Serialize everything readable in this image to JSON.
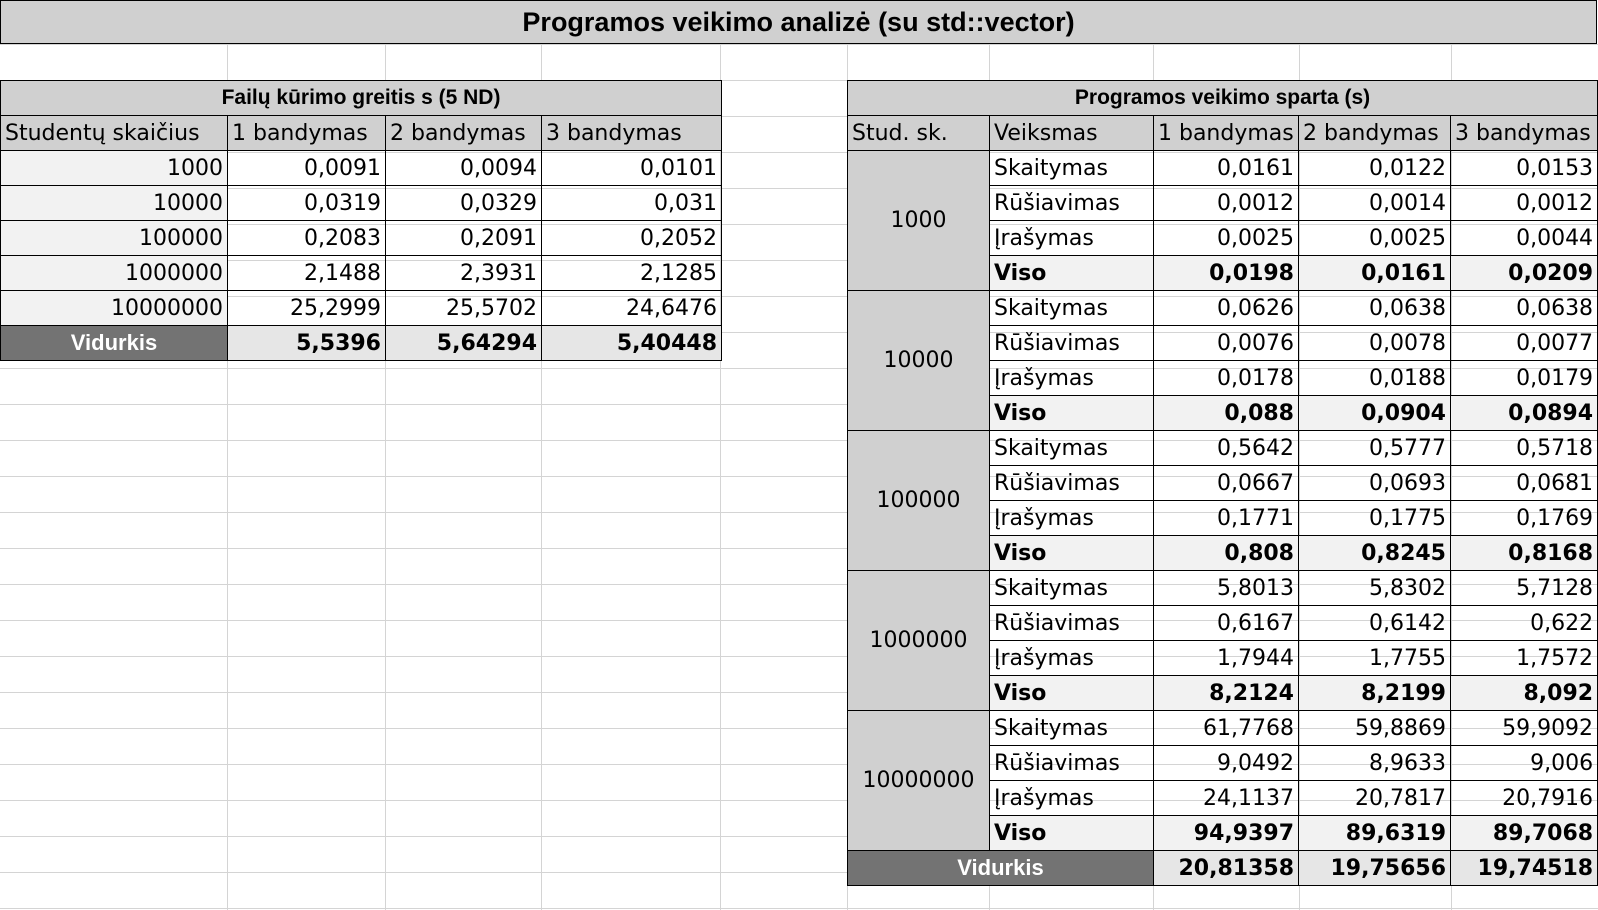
{
  "title": "Programos veikimo analizė (su std::vector)",
  "left_table": {
    "header": "Failų kūrimo greitis s (5 ND)",
    "columns": [
      "Studentų skaičius",
      "1 bandymas",
      "2 bandymas",
      "3 bandymas"
    ],
    "rows": [
      [
        "1000",
        "0,0091",
        "0,0094",
        "0,0101"
      ],
      [
        "10000",
        "0,0319",
        "0,0329",
        "0,031"
      ],
      [
        "100000",
        "0,2083",
        "0,2091",
        "0,2052"
      ],
      [
        "1000000",
        "2,1488",
        "2,3931",
        "2,1285"
      ],
      [
        "10000000",
        "25,2999",
        "25,5702",
        "24,6476"
      ]
    ],
    "average": [
      "Vidurkis",
      "5,5396",
      "5,64294",
      "5,40448"
    ]
  },
  "right_table": {
    "header": "Programos veikimo sparta (s)",
    "columns": [
      "Stud. sk.",
      "Veiksmas",
      "1 bandymas",
      "2 bandymas",
      "3 bandymas"
    ],
    "groups": [
      {
        "count": "1000",
        "rows": [
          [
            "Skaitymas",
            "0,0161",
            "0,0122",
            "0,0153"
          ],
          [
            "Rūšiavimas",
            "0,0012",
            "0,0014",
            "0,0012"
          ],
          [
            "Įrašymas",
            "0,0025",
            "0,0025",
            "0,0044"
          ],
          [
            "Viso",
            "0,0198",
            "0,0161",
            "0,0209"
          ]
        ]
      },
      {
        "count": "10000",
        "rows": [
          [
            "Skaitymas",
            "0,0626",
            "0,0638",
            "0,0638"
          ],
          [
            "Rūšiavimas",
            "0,0076",
            "0,0078",
            "0,0077"
          ],
          [
            "Įrašymas",
            "0,0178",
            "0,0188",
            "0,0179"
          ],
          [
            "Viso",
            "0,088",
            "0,0904",
            "0,0894"
          ]
        ]
      },
      {
        "count": "100000",
        "rows": [
          [
            "Skaitymas",
            "0,5642",
            "0,5777",
            "0,5718"
          ],
          [
            "Rūšiavimas",
            "0,0667",
            "0,0693",
            "0,0681"
          ],
          [
            "Įrašymas",
            "0,1771",
            "0,1775",
            "0,1769"
          ],
          [
            "Viso",
            "0,808",
            "0,8245",
            "0,8168"
          ]
        ]
      },
      {
        "count": "1000000",
        "rows": [
          [
            "Skaitymas",
            "5,8013",
            "5,8302",
            "5,7128"
          ],
          [
            "Rūšiavimas",
            "0,6167",
            "0,6142",
            "0,622"
          ],
          [
            "Įrašymas",
            "1,7944",
            "1,7755",
            "1,7572"
          ],
          [
            "Viso",
            "8,2124",
            "8,2199",
            "8,092"
          ]
        ]
      },
      {
        "count": "10000000",
        "rows": [
          [
            "Skaitymas",
            "61,7768",
            "59,8869",
            "59,9092"
          ],
          [
            "Rūšiavimas",
            "9,0492",
            "8,9633",
            "9,006"
          ],
          [
            "Įrašymas",
            "24,1137",
            "20,7817",
            "20,7916"
          ],
          [
            "Viso",
            "94,9397",
            "89,6319",
            "89,7068"
          ]
        ]
      }
    ],
    "average": [
      "Vidurkis",
      "20,81358",
      "19,75656",
      "19,74518"
    ]
  },
  "colors": {
    "header_fill": "#d0d0d0",
    "average_fill": "#737373",
    "light_fill": "#f2f2f2"
  }
}
